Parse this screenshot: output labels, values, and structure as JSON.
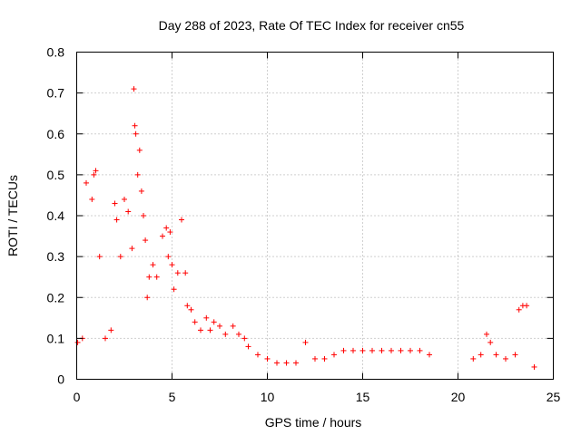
{
  "chart_data": {
    "type": "scatter",
    "title": "Day 288 of 2023, Rate Of TEC Index for receiver cn55",
    "xlabel": "GPS time / hours",
    "ylabel": "ROTI / TECUs",
    "xlim": [
      0,
      25
    ],
    "ylim": [
      0,
      0.8
    ],
    "xticks": [
      0,
      5,
      10,
      15,
      20,
      25
    ],
    "yticks": [
      0,
      0.1,
      0.2,
      0.3,
      0.4,
      0.5,
      0.6,
      0.7,
      0.8
    ],
    "xtick_labels": [
      "0",
      "5",
      "10",
      "15",
      "20",
      "25"
    ],
    "ytick_labels": [
      "0",
      "0.1",
      "0.2",
      "0.3",
      "0.4",
      "0.5",
      "0.6",
      "0.7",
      "0.8"
    ],
    "grid": true,
    "marker": "+",
    "color": "#ff0000",
    "series": [
      {
        "name": "ROTI",
        "x": [
          0.05,
          0.3,
          0.5,
          0.8,
          0.9,
          1.0,
          1.2,
          1.5,
          1.8,
          2.0,
          2.1,
          2.3,
          2.5,
          2.7,
          2.9,
          3.0,
          3.05,
          3.1,
          3.2,
          3.3,
          3.4,
          3.5,
          3.6,
          3.7,
          3.8,
          4.0,
          4.2,
          4.5,
          4.7,
          4.8,
          4.9,
          5.0,
          5.1,
          5.3,
          5.5,
          5.7,
          5.8,
          6.0,
          6.2,
          6.5,
          6.8,
          7.0,
          7.2,
          7.5,
          7.8,
          8.2,
          8.5,
          8.8,
          9.0,
          9.5,
          10.0,
          10.5,
          11.0,
          11.5,
          12.0,
          12.5,
          13.0,
          13.5,
          14.0,
          14.5,
          15.0,
          15.5,
          16.0,
          16.5,
          17.0,
          17.5,
          18.0,
          18.5,
          20.8,
          21.2,
          21.5,
          21.7,
          22.0,
          22.5,
          23.0,
          23.2,
          23.4,
          23.6,
          24.0
        ],
        "y": [
          0.09,
          0.1,
          0.48,
          0.44,
          0.5,
          0.51,
          0.3,
          0.1,
          0.12,
          0.43,
          0.39,
          0.3,
          0.44,
          0.41,
          0.32,
          0.71,
          0.62,
          0.6,
          0.5,
          0.56,
          0.46,
          0.4,
          0.34,
          0.2,
          0.25,
          0.28,
          0.25,
          0.35,
          0.37,
          0.3,
          0.36,
          0.28,
          0.22,
          0.26,
          0.39,
          0.26,
          0.18,
          0.17,
          0.14,
          0.12,
          0.15,
          0.12,
          0.14,
          0.13,
          0.11,
          0.13,
          0.11,
          0.1,
          0.08,
          0.06,
          0.05,
          0.04,
          0.04,
          0.04,
          0.09,
          0.05,
          0.05,
          0.06,
          0.07,
          0.07,
          0.07,
          0.07,
          0.07,
          0.07,
          0.07,
          0.07,
          0.07,
          0.06,
          0.05,
          0.06,
          0.11,
          0.09,
          0.06,
          0.05,
          0.06,
          0.17,
          0.18,
          0.18,
          0.03
        ],
        "point_color": "#ff0000"
      }
    ]
  }
}
